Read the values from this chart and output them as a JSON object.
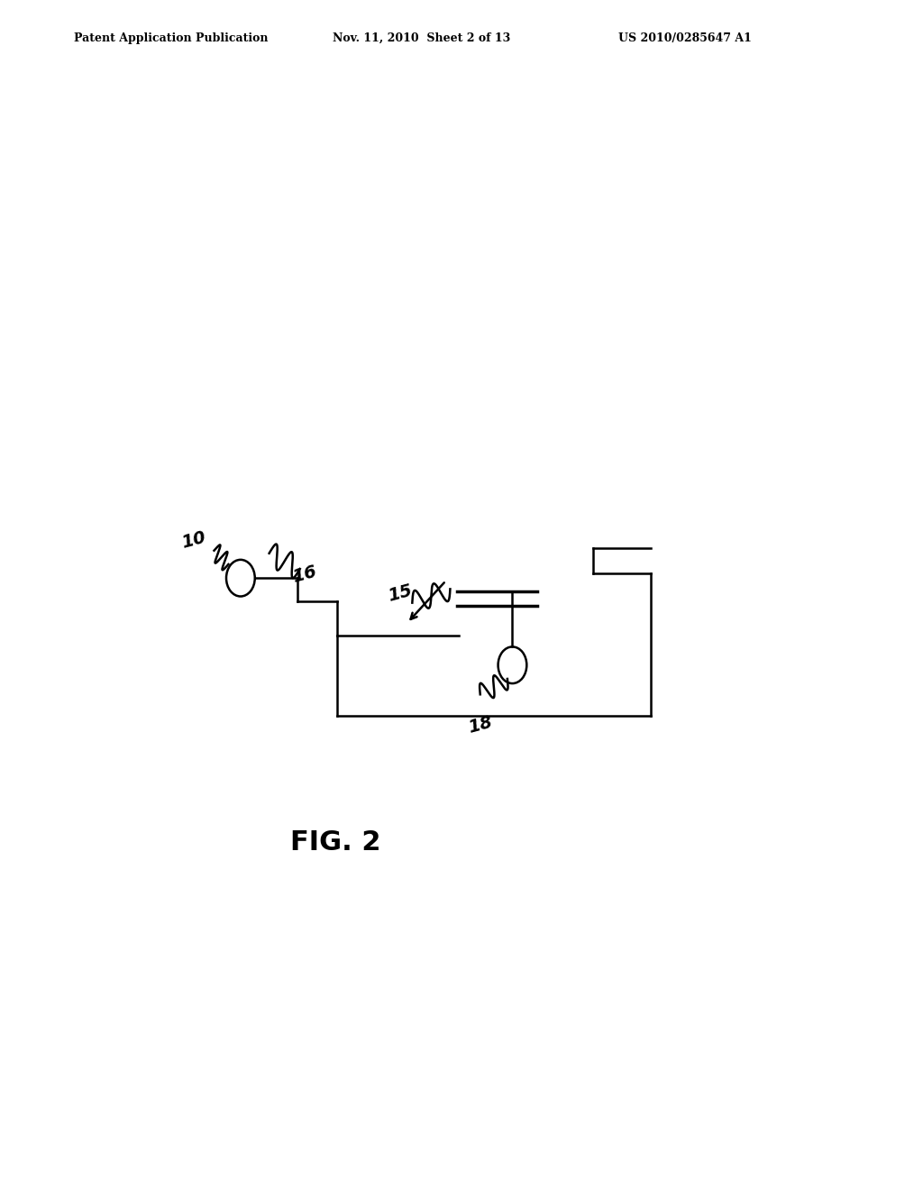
{
  "bg_color": "#ffffff",
  "text_color": "#000000",
  "header_left": "Patent Application Publication",
  "header_mid": "Nov. 11, 2010  Sheet 2 of 13",
  "header_right": "US 2010/0285647 A1",
  "fig_label": "FIG. 2"
}
